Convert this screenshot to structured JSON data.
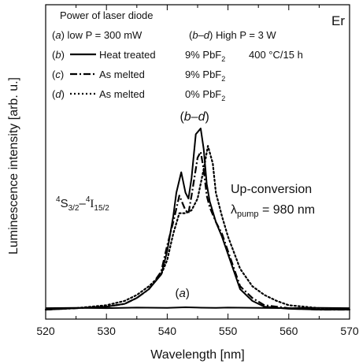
{
  "chart_data": {
    "type": "line",
    "xlabel": "Wavelength [nm]",
    "ylabel": "Luminescence intensity [arb. u.]",
    "xlim": [
      520,
      570
    ],
    "ylim": [
      0,
      1.0
    ],
    "x_ticks": [
      520,
      530,
      540,
      550,
      560,
      570
    ],
    "y_ticks_labeled": false,
    "grid": false,
    "legend": {
      "placement": "top-left",
      "header": "Power of laser diode",
      "line_a": {
        "tag": "a",
        "text": "low P = 300 mW"
      },
      "line_bd": {
        "tag": "b–d",
        "text": "High P = 3 W"
      },
      "entries": [
        {
          "tag": "b",
          "label": "Heat treated",
          "composition": "9% PbF",
          "subscript": "2",
          "condition": "400 °C/15 h",
          "style": "solid"
        },
        {
          "tag": "c",
          "label": "As melted",
          "composition": "9% PbF",
          "subscript": "2",
          "condition": "",
          "style": "dash-dot"
        },
        {
          "tag": "d",
          "label": "As melted",
          "composition": "0% PbF",
          "subscript": "2",
          "condition": "",
          "style": "dotted"
        }
      ]
    },
    "annotations": {
      "corner": "Er",
      "peak_group": "b–d",
      "low_power": "a",
      "transition": {
        "sup1": "4",
        "base1": "S",
        "sub1": "3/2",
        "dash": "–",
        "sup2": "4",
        "base2": "I",
        "sub2": "15/2"
      },
      "process_line1": "Up-conversion",
      "process_line2_symbol": "λ",
      "process_line2_sub": "pump",
      "process_line2_value": " = 980 nm"
    },
    "series": [
      {
        "tag": "a",
        "style": "solid",
        "x": [
          520,
          525,
          530,
          535,
          540,
          543,
          545,
          548,
          550,
          555,
          560,
          565,
          570
        ],
        "y": [
          0.005,
          0.006,
          0.005,
          0.007,
          0.006,
          0.008,
          0.007,
          0.006,
          0.007,
          0.006,
          0.005,
          0.006,
          0.005
        ]
      },
      {
        "tag": "b",
        "style": "solid",
        "x": [
          520,
          530,
          533,
          535,
          537,
          539,
          540,
          541,
          541.5,
          542.3,
          543,
          543.5,
          544,
          544.7,
          545.5,
          546,
          546.5,
          547,
          548,
          549,
          550,
          551,
          552,
          554,
          556,
          560,
          565,
          570
        ],
        "y": [
          0.0,
          0.01,
          0.02,
          0.04,
          0.07,
          0.12,
          0.2,
          0.32,
          0.4,
          0.47,
          0.4,
          0.38,
          0.45,
          0.6,
          0.62,
          0.55,
          0.43,
          0.37,
          0.3,
          0.25,
          0.19,
          0.13,
          0.07,
          0.03,
          0.01,
          0.003,
          0.0,
          0.0
        ]
      },
      {
        "tag": "c",
        "style": "dash-dot",
        "x": [
          520,
          530,
          533,
          535,
          537,
          539,
          540,
          541,
          542,
          543,
          543.5,
          544,
          545,
          545.5,
          546,
          546.5,
          547,
          548,
          549,
          550,
          551,
          552,
          554,
          556,
          560,
          565,
          570
        ],
        "y": [
          0.0,
          0.01,
          0.02,
          0.04,
          0.07,
          0.13,
          0.22,
          0.3,
          0.39,
          0.34,
          0.33,
          0.39,
          0.52,
          0.54,
          0.48,
          0.39,
          0.35,
          0.3,
          0.26,
          0.2,
          0.14,
          0.08,
          0.04,
          0.015,
          0.005,
          0.0,
          0.0
        ]
      },
      {
        "tag": "d",
        "style": "dotted",
        "x": [
          520,
          525,
          530,
          533,
          535,
          537,
          539,
          540,
          541,
          542,
          543,
          544,
          545,
          546,
          546.7,
          547.5,
          548,
          549,
          550,
          552,
          554,
          556,
          558,
          560,
          565,
          570
        ],
        "y": [
          0.0,
          0.005,
          0.015,
          0.03,
          0.05,
          0.08,
          0.12,
          0.17,
          0.26,
          0.33,
          0.33,
          0.34,
          0.38,
          0.48,
          0.56,
          0.5,
          0.4,
          0.32,
          0.25,
          0.14,
          0.08,
          0.05,
          0.03,
          0.015,
          0.005,
          0.0
        ]
      }
    ]
  }
}
